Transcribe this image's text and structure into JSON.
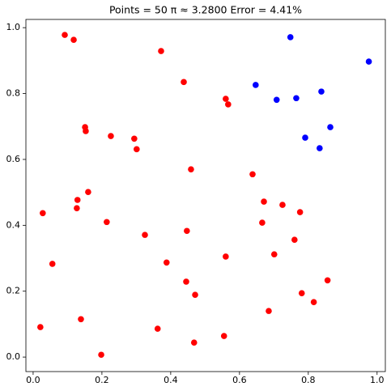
{
  "chart_data": {
    "type": "scatter",
    "title": "Points = 50   π ≈ 3.2800   Error = 4.41%",
    "series": [
      {
        "color": "#ff0000",
        "x": [
          0.092,
          0.118,
          0.372,
          0.438,
          0.56,
          0.567,
          0.151,
          0.153,
          0.226,
          0.294,
          0.301,
          0.459,
          0.638,
          0.16,
          0.129,
          0.671,
          0.028,
          0.127,
          0.725,
          0.776,
          0.214,
          0.666,
          0.325,
          0.447,
          0.76,
          0.056,
          0.388,
          0.701,
          0.56,
          0.445,
          0.856,
          0.471,
          0.781,
          0.685,
          0.816,
          0.021,
          0.139,
          0.362,
          0.555,
          0.468,
          0.198
        ],
        "values": [
          0.978,
          0.963,
          0.929,
          0.835,
          0.784,
          0.767,
          0.698,
          0.686,
          0.671,
          0.663,
          0.631,
          0.57,
          0.555,
          0.501,
          0.477,
          0.472,
          0.437,
          0.452,
          0.462,
          0.44,
          0.41,
          0.408,
          0.371,
          0.383,
          0.356,
          0.283,
          0.287,
          0.312,
          0.305,
          0.229,
          0.233,
          0.189,
          0.194,
          0.14,
          0.167,
          0.091,
          0.115,
          0.086,
          0.064,
          0.044,
          0.007
        ]
      },
      {
        "color": "#0000ff",
        "x": [
          0.748,
          0.976,
          0.647,
          0.708,
          0.765,
          0.838,
          0.791,
          0.864,
          0.833
        ],
        "values": [
          0.971,
          0.897,
          0.826,
          0.781,
          0.786,
          0.806,
          0.666,
          0.698,
          0.634
        ]
      }
    ],
    "xlim": [
      -0.021,
      1.024
    ],
    "ylim": [
      -0.044,
      1.025
    ],
    "xticks": [
      {
        "value": 0,
        "label": "0.0"
      },
      {
        "value": 0.2,
        "label": "0.2"
      },
      {
        "value": 0.4,
        "label": "0.4"
      },
      {
        "value": 0.6,
        "label": "0.6"
      },
      {
        "value": 0.8,
        "label": "0.8"
      },
      {
        "value": 1,
        "label": "1.0"
      }
    ],
    "yticks": [
      {
        "value": 0,
        "label": "0.0"
      },
      {
        "value": 0.2,
        "label": "0.2"
      },
      {
        "value": 0.4,
        "label": "0.4"
      },
      {
        "value": 0.6,
        "label": "0.6"
      },
      {
        "value": 0.8,
        "label": "0.8"
      },
      {
        "value": 1,
        "label": "1.0"
      }
    ]
  }
}
